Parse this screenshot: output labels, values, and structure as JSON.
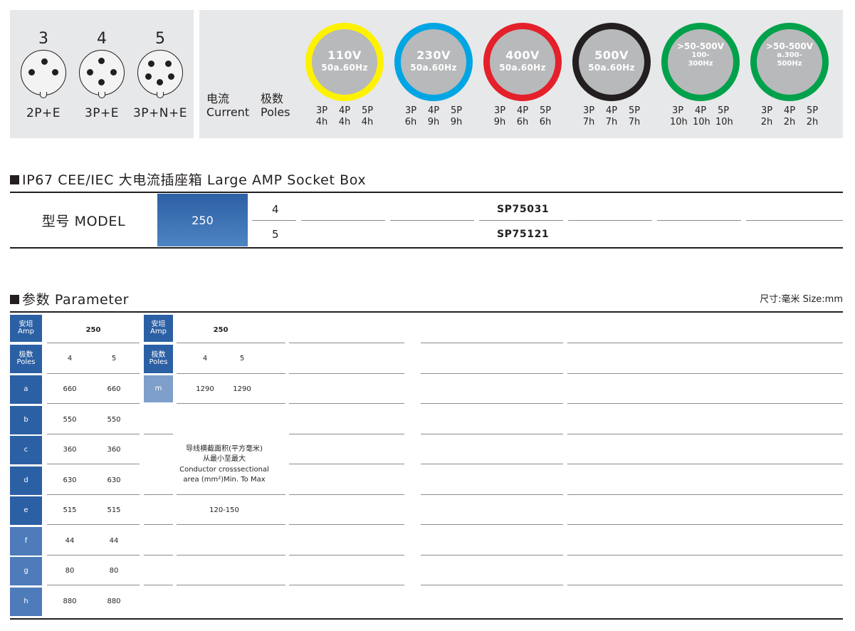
{
  "banner": {
    "plugs": [
      {
        "number": "3",
        "type": "2P+E"
      },
      {
        "number": "4",
        "type": "3P+E"
      },
      {
        "number": "5",
        "type": "3P+N+E"
      }
    ],
    "current_label": [
      "电流",
      "Current"
    ],
    "poles_label": [
      "极数",
      "Poles"
    ],
    "voltages": [
      {
        "voltage": "110V",
        "freq": "50a.60Hz",
        "ring_color": "#fff200",
        "small": false,
        "poles": [
          {
            "p": "3P",
            "h": "4h"
          },
          {
            "p": "4P",
            "h": "4h"
          },
          {
            "p": "5P",
            "h": "4h"
          }
        ]
      },
      {
        "voltage": "230V",
        "freq": "50a.60Hz",
        "ring_color": "#00a5e3",
        "small": false,
        "poles": [
          {
            "p": "3P",
            "h": "6h"
          },
          {
            "p": "4P",
            "h": "9h"
          },
          {
            "p": "5P",
            "h": "9h"
          }
        ]
      },
      {
        "voltage": "400V",
        "freq": "50a.60Hz",
        "ring_color": "#e4202a",
        "small": false,
        "poles": [
          {
            "p": "3P",
            "h": "9h"
          },
          {
            "p": "4P",
            "h": "6h"
          },
          {
            "p": "5P",
            "h": "6h"
          }
        ]
      },
      {
        "voltage": "500V",
        "freq": "50a.60Hz",
        "ring_color": "#231f20",
        "small": false,
        "poles": [
          {
            "p": "3P",
            "h": "7h"
          },
          {
            "p": "4P",
            "h": "7h"
          },
          {
            "p": "5P",
            "h": "7h"
          }
        ]
      },
      {
        "voltage": ">50-500V",
        "freq": "100-\n300Hz",
        "ring_color": "#00a14b",
        "small": true,
        "poles": [
          {
            "p": "3P",
            "h": "10h"
          },
          {
            "p": "4P",
            "h": "10h"
          },
          {
            "p": "5P",
            "h": "10h"
          }
        ]
      },
      {
        "voltage": ">50-500V",
        "freq": "a.300-\n500Hz",
        "ring_color": "#00a14b",
        "small": true,
        "poles": [
          {
            "p": "3P",
            "h": "2h"
          },
          {
            "p": "4P",
            "h": "2h"
          },
          {
            "p": "5P",
            "h": "2h"
          }
        ]
      }
    ]
  },
  "product": {
    "title": "IP67 CEE/IEC 大电流插座箱  Large AMP Socket Box",
    "model_label": "型号 MODEL",
    "amp": "250",
    "rows": [
      {
        "poles": "4",
        "code": "SP75031"
      },
      {
        "poles": "5",
        "code": "SP75121"
      }
    ]
  },
  "parameter": {
    "title": "参数 Parameter",
    "size_note": "尺寸:毫米  Size:mm",
    "amp_header": [
      "安培",
      "Amp"
    ],
    "poles_header": [
      "极数",
      "Poles"
    ],
    "left": {
      "amp": "250",
      "poles": [
        "4",
        "5"
      ],
      "rows": [
        {
          "label": "a",
          "v4": "660",
          "v5": "660"
        },
        {
          "label": "b",
          "v4": "550",
          "v5": "550"
        },
        {
          "label": "c",
          "v4": "360",
          "v5": "360"
        },
        {
          "label": "d",
          "v4": "630",
          "v5": "630"
        },
        {
          "label": "e",
          "v4": "515",
          "v5": "515"
        },
        {
          "label": "f",
          "v4": "44",
          "v5": "44"
        },
        {
          "label": "g",
          "v4": "80",
          "v5": "80"
        },
        {
          "label": "h",
          "v4": "880",
          "v5": "880"
        }
      ]
    },
    "right": {
      "amp": "250",
      "poles": [
        "4",
        "5"
      ],
      "m_label": "m",
      "m_v4": "1290",
      "m_v5": "1290"
    },
    "conductor_cn_1": "导线横截面积(平方毫米)",
    "conductor_cn_2": "从最小至最大",
    "conductor_en_1": "Conductor crosssectional",
    "conductor_en_2": "area (mm²)Min. To Max",
    "conductor_range": "120-150"
  },
  "colors": {
    "header_blue_dark": "#2c60a4",
    "label_blue_light": "#7f9fcb",
    "banner_gray": "#e7e8e9"
  }
}
